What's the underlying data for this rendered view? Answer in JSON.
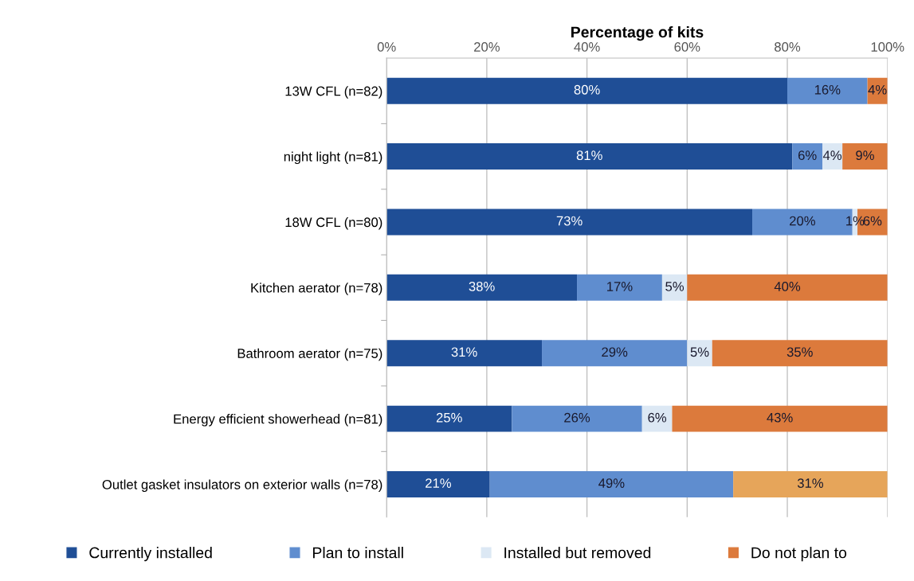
{
  "chart_data": {
    "type": "bar",
    "orientation": "horizontal",
    "stacked": true,
    "xlabel": "Percentage of kits",
    "categories": [
      "13W CFL (n=82)",
      "night light (n=81)",
      "18W CFL (n=80)",
      "Kitchen aerator (n=78)",
      "Bathroom aerator (n=75)",
      "Energy efficient showerhead (n=81)",
      "Outlet gasket insulators on exterior walls (n=78)"
    ],
    "series": [
      {
        "name": "Currently installed",
        "color": "#1f4e96",
        "values": [
          80,
          81,
          73,
          38,
          31,
          25,
          20.6
        ],
        "value_labels": [
          "80%",
          "81%",
          "73%",
          "38%",
          "31%",
          "25%",
          "21%"
        ]
      },
      {
        "name": "Plan to install",
        "color": "#5f8dcf",
        "values": [
          16,
          6,
          20,
          17,
          29,
          26,
          48.6
        ],
        "value_labels": [
          "16%",
          "6%",
          "20%",
          "17%",
          "29%",
          "26%",
          "49%"
        ]
      },
      {
        "name": "Installed but removed",
        "color": "#dce8f4",
        "values": [
          0,
          4,
          1,
          5,
          5,
          6,
          0
        ],
        "value_labels": [
          null,
          "4%",
          "1%",
          "5%",
          "5%",
          "6%",
          null
        ]
      },
      {
        "name": "Do not plan to",
        "color": "#dc7a3c",
        "colors": [
          "#dc7a3c",
          "#dc7a3c",
          "#dc7a3c",
          "#dc7a3c",
          "#dc7a3c",
          "#dc7a3c",
          "#e6a55a"
        ],
        "values": [
          4,
          9,
          6,
          40,
          35,
          43,
          30.8
        ],
        "value_labels": [
          "4%",
          "9%",
          "6%",
          "40%",
          "35%",
          "43%",
          "31%"
        ]
      }
    ],
    "xlim": [
      0,
      100
    ],
    "xticks": [
      {
        "value": 0,
        "label": "0%"
      },
      {
        "value": 20,
        "label": "20%"
      },
      {
        "value": 40,
        "label": "40%"
      },
      {
        "value": 60,
        "label": "60%"
      },
      {
        "value": 80,
        "label": "80%"
      },
      {
        "value": 100,
        "label": "100%"
      }
    ],
    "grid": "x",
    "legend": "bottom"
  }
}
